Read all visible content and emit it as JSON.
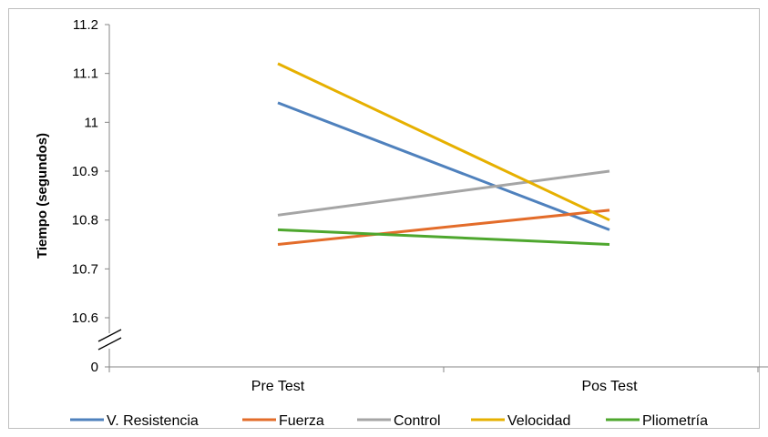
{
  "chart_data": {
    "type": "line",
    "title": "",
    "xlabel": "",
    "ylabel": "Tiempo (segundos)",
    "categories": [
      "Pre Test",
      "Pos Test"
    ],
    "y_ticks": [
      "0",
      "10.6",
      "10.7",
      "10.8",
      "10.9",
      "11",
      "11.1",
      "11.2"
    ],
    "ylim": [
      10.6,
      11.2
    ],
    "axis_break": true,
    "grid": false,
    "legend_position": "bottom",
    "series": [
      {
        "name": "V. Resistencia",
        "values": [
          11.04,
          10.78
        ],
        "color": "#4f81bd"
      },
      {
        "name": "Fuerza",
        "values": [
          10.75,
          10.82
        ],
        "color": "#e36c2a"
      },
      {
        "name": "Control",
        "values": [
          10.81,
          10.9
        ],
        "color": "#a5a5a5"
      },
      {
        "name": "Velocidad",
        "values": [
          11.12,
          10.8
        ],
        "color": "#e6b000"
      },
      {
        "name": "Pliometría",
        "values": [
          10.78,
          10.75
        ],
        "color": "#4ea72e"
      }
    ]
  }
}
